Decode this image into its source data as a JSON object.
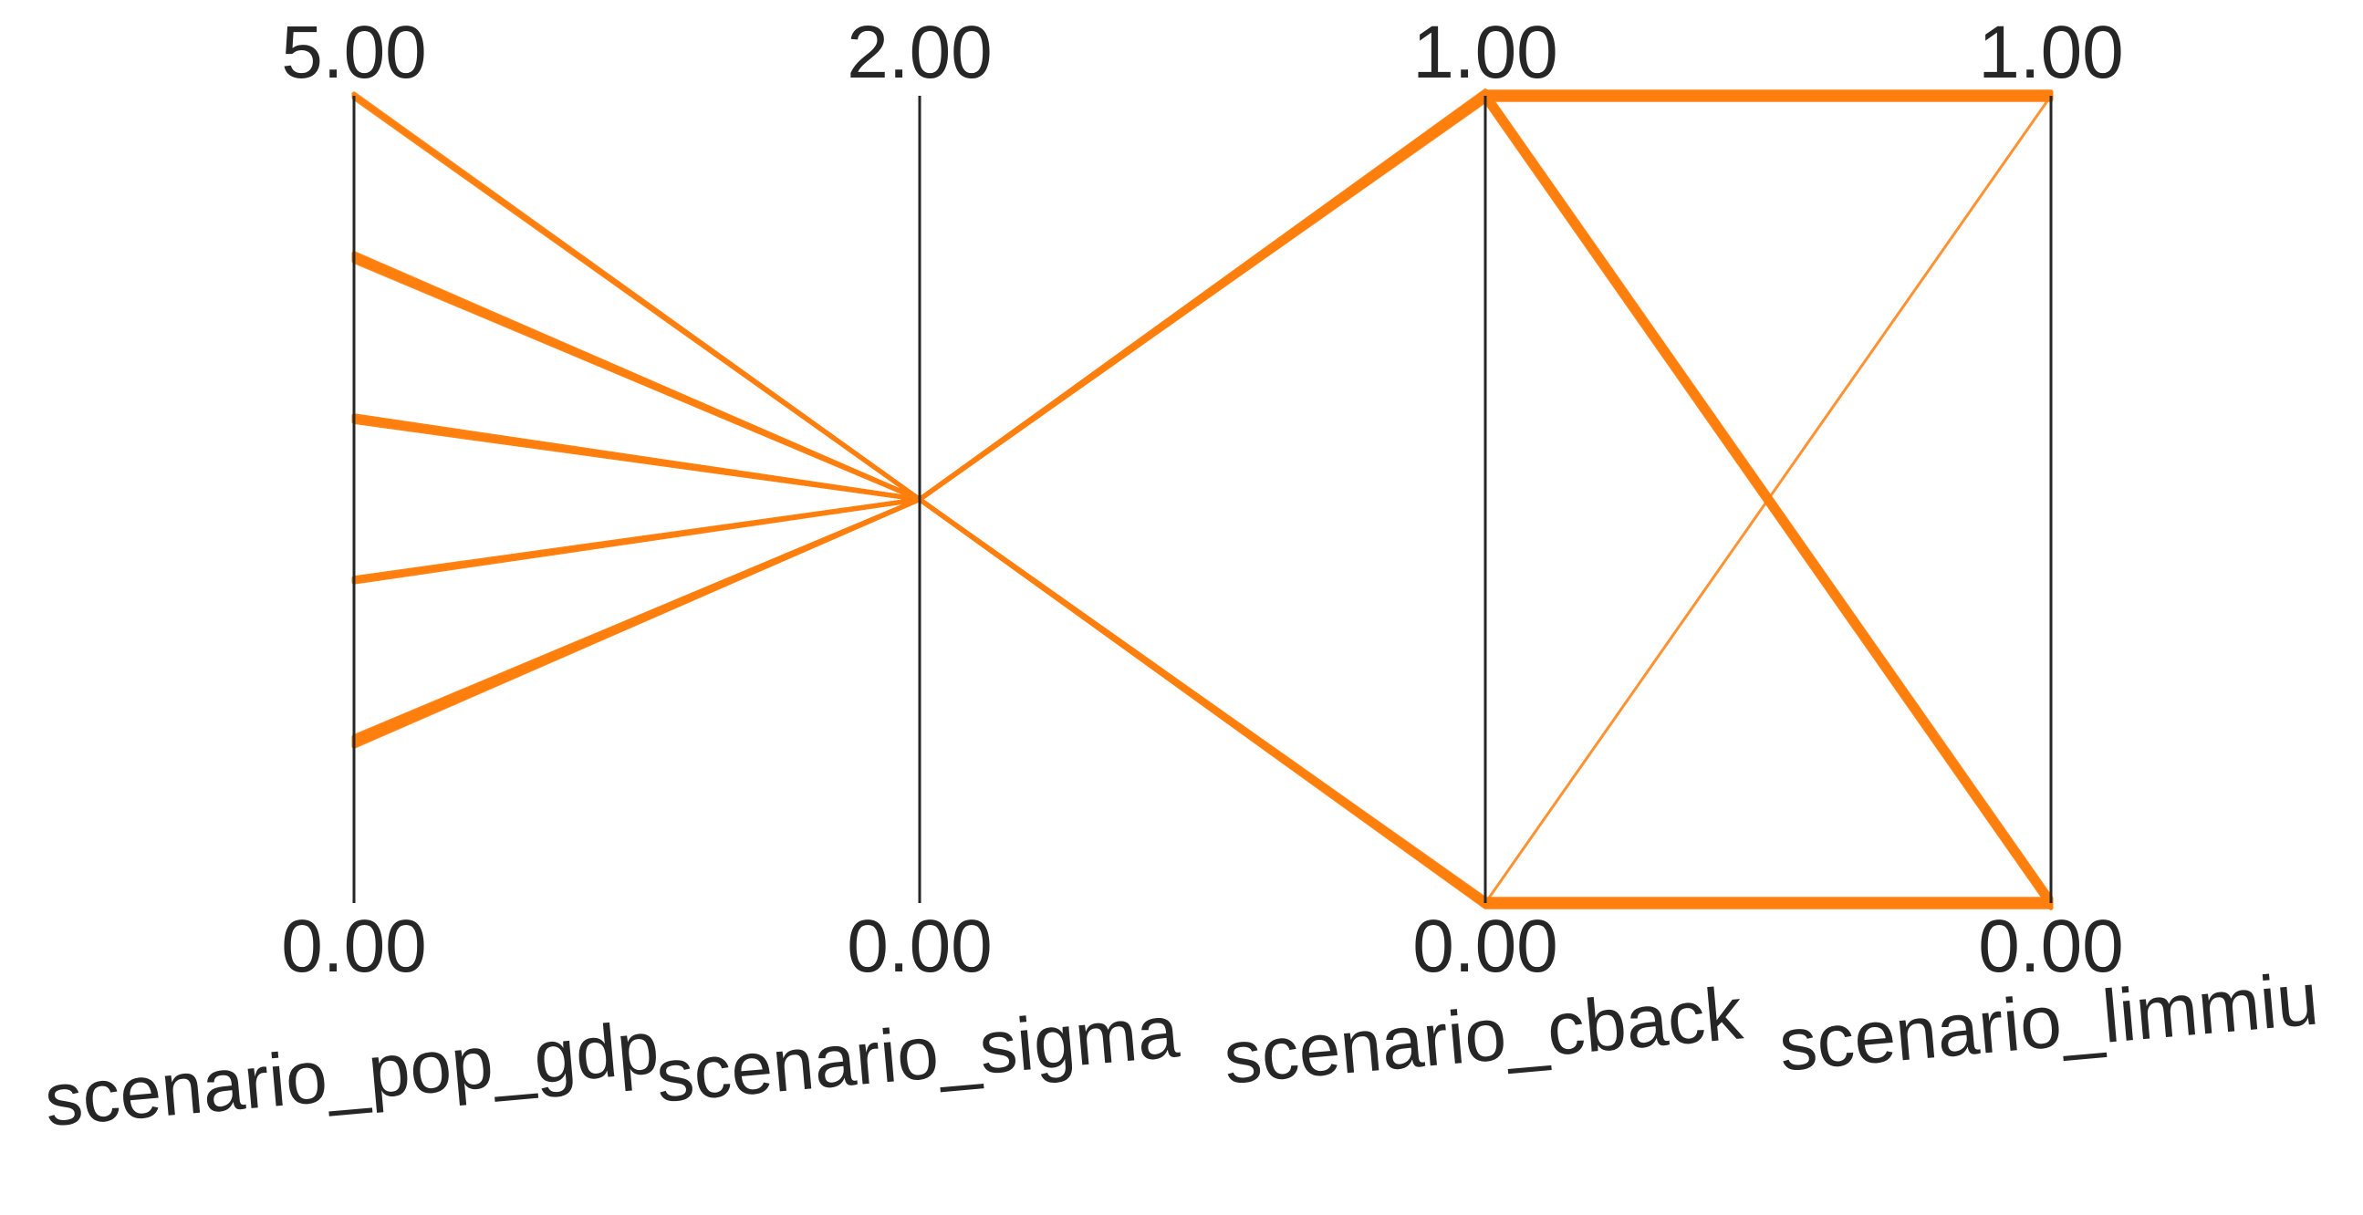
{
  "chart_data": {
    "type": "parallel_coordinates",
    "title": "",
    "line_color": "#ff7f0e",
    "axis_color": "#262626",
    "background": "#ffffff",
    "grid": false,
    "legend": "none",
    "axes": [
      {
        "name": "scenario_pop_gdp",
        "min": 0,
        "max": 5,
        "min_label": "0.00",
        "max_label": "5.00"
      },
      {
        "name": "scenario_sigma",
        "min": 0,
        "max": 2,
        "min_label": "0.00",
        "max_label": "2.00"
      },
      {
        "name": "scenario_cback",
        "min": 0,
        "max": 1,
        "min_label": "0.00",
        "max_label": "1.00"
      },
      {
        "name": "scenario_limmiu",
        "min": 0,
        "max": 1,
        "min_label": "0.00",
        "max_label": "1.00"
      }
    ],
    "line_groups": [
      {
        "values": [
          5,
          1,
          1,
          1
        ],
        "weight": 3
      },
      {
        "values": [
          5,
          1,
          0,
          0
        ],
        "weight": 2
      },
      {
        "values": [
          4,
          1,
          1,
          1
        ],
        "weight": 4
      },
      {
        "values": [
          4,
          1,
          0,
          0
        ],
        "weight": 4
      },
      {
        "values": [
          3,
          1,
          1,
          1
        ],
        "weight": 4
      },
      {
        "values": [
          3,
          1,
          0,
          0
        ],
        "weight": 4
      },
      {
        "values": [
          2,
          1,
          1,
          1
        ],
        "weight": 3
      },
      {
        "values": [
          2,
          1,
          0,
          0
        ],
        "weight": 3
      },
      {
        "values": [
          1,
          1,
          1,
          1
        ],
        "weight": 5
      },
      {
        "values": [
          1,
          1,
          0,
          0
        ],
        "weight": 5
      },
      {
        "values": [
          1,
          1,
          1,
          0
        ],
        "weight": 6
      },
      {
        "values": [
          4,
          1,
          1,
          0
        ],
        "weight": 5
      },
      {
        "values": [
          2,
          1,
          0,
          1
        ],
        "weight": 1
      }
    ]
  }
}
